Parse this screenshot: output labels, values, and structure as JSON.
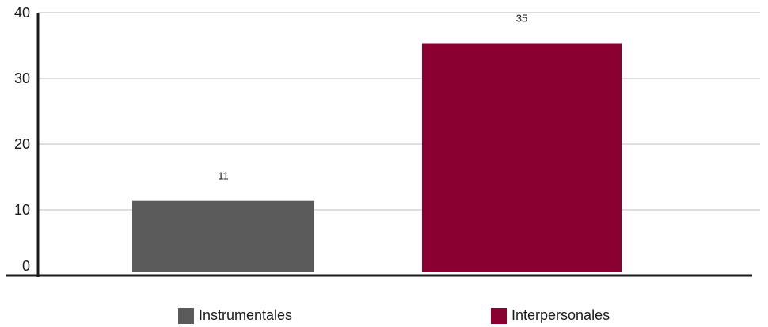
{
  "chart_data": {
    "type": "bar",
    "categories": [
      "Instrumentales",
      "Interpersonales"
    ],
    "values": [
      11,
      35
    ],
    "colors": [
      "#5b5b5c",
      "#8a0030"
    ],
    "ylim": [
      0,
      40
    ],
    "yticks": [
      0,
      10,
      20,
      30,
      40
    ],
    "grid": true,
    "legend_position": "bottom"
  },
  "legend": {
    "items": [
      {
        "label": "Instrumentales",
        "color": "#5b5b5c"
      },
      {
        "label": "Interpersonales",
        "color": "#8a0030"
      }
    ]
  }
}
